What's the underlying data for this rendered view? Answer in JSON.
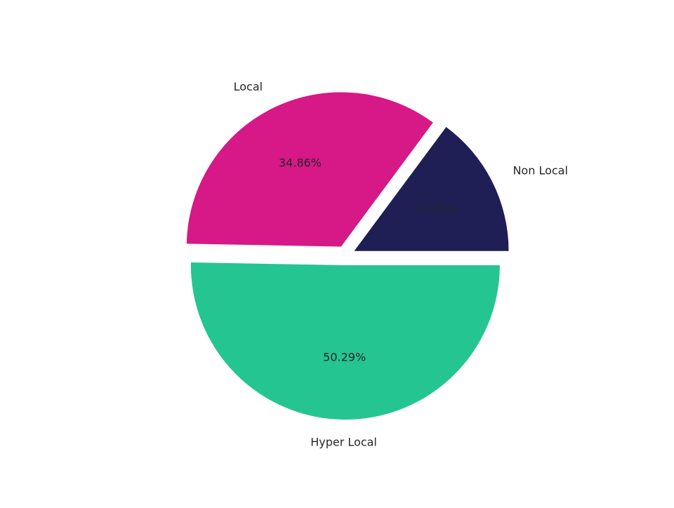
{
  "chart_data": {
    "type": "pie",
    "title": "",
    "slices": [
      {
        "label": "Non Local",
        "value": 14.85,
        "pct_label": "14.85%",
        "color": "#1f1f55",
        "exploded": true
      },
      {
        "label": "Local",
        "value": 34.86,
        "pct_label": "34.86%",
        "color": "#d71887",
        "exploded": true
      },
      {
        "label": "Hyper Local",
        "value": 50.29,
        "pct_label": "50.29%",
        "color": "#25c592",
        "exploded": true
      }
    ],
    "start_angle_deg": 0,
    "direction": "counterclockwise",
    "legend": "none"
  }
}
